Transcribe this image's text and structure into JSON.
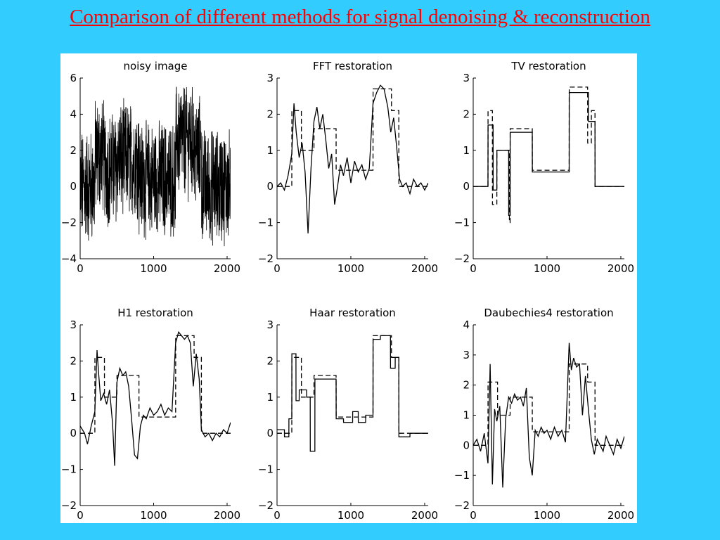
{
  "slide": {
    "title": "Comparison of different methods for signal denoising & reconstruction",
    "colors": {
      "background": "#33ccff",
      "title": "#ff0000",
      "panel": "#ffffff",
      "ink": "#000000"
    }
  },
  "chart_data": [
    {
      "type": "line",
      "title": "noisy image",
      "xlim": [
        0,
        2048
      ],
      "ylim": [
        -4,
        6
      ],
      "xticks": [
        "0",
        "1000",
        "2000"
      ],
      "yticks": [
        "−4",
        "−2",
        "0",
        "2",
        "4",
        "6"
      ],
      "series": [
        {
          "style": "noisy",
          "x": [
            0,
            200,
            201,
            320,
            321,
            500,
            501,
            800,
            801,
            1300,
            1301,
            1550,
            1551,
            1650,
            1651,
            2048
          ],
          "y": [
            0,
            0,
            1.7,
            1.7,
            1.0,
            1.0,
            1.5,
            1.5,
            0.4,
            0.4,
            2.6,
            2.6,
            1.8,
            1.8,
            0,
            0
          ]
        }
      ]
    },
    {
      "type": "line",
      "title": "FFT restoration",
      "xlim": [
        0,
        2048
      ],
      "ylim": [
        -2,
        3
      ],
      "xticks": [
        "0",
        "1000",
        "2000"
      ],
      "yticks": [
        "−2",
        "−1",
        "0",
        "1",
        "2",
        "3"
      ],
      "series": [
        {
          "style": "dashed",
          "x": [
            0,
            200,
            201,
            330,
            331,
            500,
            501,
            800,
            801,
            1300,
            1301,
            1550,
            1551,
            1650,
            1651,
            2048
          ],
          "y": [
            0,
            0,
            2.1,
            2.1,
            1.0,
            1.0,
            1.6,
            1.6,
            0.45,
            0.45,
            2.7,
            2.7,
            2.1,
            2.1,
            0,
            0
          ]
        },
        {
          "style": "solid",
          "x": [
            0,
            50,
            100,
            150,
            200,
            230,
            260,
            300,
            340,
            380,
            420,
            460,
            500,
            540,
            580,
            620,
            660,
            700,
            740,
            780,
            820,
            860,
            900,
            950,
            1000,
            1050,
            1100,
            1150,
            1200,
            1250,
            1300,
            1350,
            1400,
            1450,
            1500,
            1540,
            1580,
            1620,
            1660,
            1700,
            1750,
            1800,
            1850,
            1900,
            1950,
            2000,
            2048
          ],
          "y": [
            0,
            0.1,
            -0.1,
            0.3,
            0.9,
            2.3,
            1.5,
            0.8,
            1.2,
            0.4,
            -1.3,
            0.5,
            1.8,
            2.2,
            1.6,
            2.0,
            1.3,
            0.5,
            0.9,
            -0.5,
            0.0,
            0.6,
            0.3,
            0.8,
            0.1,
            0.7,
            0.4,
            0.6,
            0.2,
            0.5,
            2.3,
            2.6,
            2.8,
            2.7,
            2.2,
            1.5,
            1.9,
            1.1,
            0.2,
            0.0,
            0.1,
            -0.2,
            0.2,
            0.0,
            0.1,
            -0.1,
            0.1
          ]
        }
      ]
    },
    {
      "type": "line",
      "title": "TV restoration",
      "xlim": [
        0,
        2048
      ],
      "ylim": [
        -2,
        3
      ],
      "xticks": [
        "0",
        "1000",
        "2000"
      ],
      "yticks": [
        "−2",
        "−1",
        "0",
        "1",
        "2",
        "3"
      ],
      "series": [
        {
          "style": "dashed",
          "x": [
            0,
            200,
            201,
            260,
            261,
            320,
            321,
            330,
            331,
            490,
            491,
            500,
            501,
            800,
            801,
            1300,
            1301,
            1550,
            1551,
            1600,
            1601,
            1650,
            1651,
            2048
          ],
          "y": [
            0,
            0,
            2.1,
            2.1,
            -0.5,
            -0.5,
            1.0,
            1.0,
            1.0,
            1.0,
            -1.0,
            -1.0,
            1.6,
            1.6,
            0.45,
            0.45,
            2.75,
            2.75,
            1.2,
            1.2,
            2.1,
            2.1,
            0,
            0
          ]
        },
        {
          "style": "solid",
          "x": [
            0,
            200,
            201,
            270,
            271,
            320,
            321,
            480,
            481,
            500,
            501,
            800,
            801,
            1300,
            1301,
            1560,
            1561,
            1650,
            1651,
            2048
          ],
          "y": [
            0,
            0,
            1.7,
            1.7,
            -0.1,
            -0.1,
            1.0,
            1.0,
            -0.8,
            -0.8,
            1.5,
            1.5,
            0.4,
            0.4,
            2.6,
            2.6,
            1.8,
            1.8,
            0,
            0
          ]
        }
      ]
    },
    {
      "type": "line",
      "title": "H1 restoration",
      "xlim": [
        0,
        2048
      ],
      "ylim": [
        -2,
        3
      ],
      "xticks": [
        "0",
        "1000",
        "2000"
      ],
      "yticks": [
        "−2",
        "−1",
        "0",
        "1",
        "2",
        "3"
      ],
      "series": [
        {
          "style": "dashed",
          "x": [
            0,
            200,
            201,
            330,
            331,
            500,
            501,
            800,
            801,
            1300,
            1301,
            1550,
            1551,
            1650,
            1651,
            2048
          ],
          "y": [
            0,
            0,
            2.1,
            2.1,
            1.0,
            1.0,
            1.6,
            1.6,
            0.45,
            0.45,
            2.7,
            2.7,
            2.1,
            2.1,
            0,
            0
          ]
        },
        {
          "style": "solid",
          "x": [
            0,
            60,
            100,
            150,
            200,
            230,
            250,
            280,
            320,
            360,
            400,
            440,
            470,
            500,
            540,
            580,
            620,
            660,
            700,
            740,
            780,
            820,
            860,
            900,
            950,
            1000,
            1050,
            1100,
            1150,
            1200,
            1250,
            1300,
            1340,
            1380,
            1420,
            1460,
            1500,
            1540,
            1580,
            1620,
            1650,
            1700,
            1750,
            1800,
            1850,
            1900,
            1950,
            2000,
            2048
          ],
          "y": [
            0.2,
            0.0,
            -0.3,
            0.2,
            0.6,
            2.3,
            1.7,
            0.9,
            1.1,
            0.8,
            1.2,
            0.3,
            -0.9,
            1.4,
            1.8,
            1.6,
            1.7,
            1.3,
            0.4,
            -0.6,
            -0.7,
            0.2,
            0.5,
            0.4,
            0.7,
            0.5,
            0.6,
            0.8,
            0.5,
            0.7,
            0.6,
            2.5,
            2.8,
            2.7,
            2.6,
            2.7,
            2.5,
            1.3,
            2.2,
            1.5,
            0.1,
            -0.1,
            0.0,
            -0.2,
            0.0,
            -0.1,
            0.1,
            0.0,
            0.3
          ]
        }
      ]
    },
    {
      "type": "line",
      "title": "Haar restoration",
      "xlim": [
        0,
        2048
      ],
      "ylim": [
        -2,
        3
      ],
      "xticks": [
        "0",
        "1000",
        "2000"
      ],
      "yticks": [
        "−2",
        "−1",
        "0",
        "1",
        "2",
        "3"
      ],
      "series": [
        {
          "style": "dashed",
          "x": [
            0,
            200,
            201,
            330,
            331,
            500,
            501,
            800,
            801,
            1300,
            1301,
            1550,
            1551,
            1650,
            1651,
            2048
          ],
          "y": [
            0,
            0,
            2.1,
            2.1,
            1.0,
            1.0,
            1.6,
            1.6,
            0.45,
            0.45,
            2.7,
            2.7,
            2.1,
            2.1,
            0,
            0
          ]
        },
        {
          "style": "solid",
          "x": [
            0,
            100,
            101,
            160,
            161,
            200,
            201,
            256,
            257,
            300,
            301,
            400,
            401,
            450,
            451,
            512,
            513,
            800,
            801,
            900,
            901,
            1024,
            1025,
            1100,
            1101,
            1200,
            1201,
            1300,
            1301,
            1400,
            1401,
            1536,
            1537,
            1600,
            1601,
            1650,
            1651,
            1800,
            1801,
            2048
          ],
          "y": [
            0.1,
            0.1,
            -0.1,
            -0.1,
            0.4,
            0.4,
            2.2,
            2.2,
            0.9,
            0.9,
            1.2,
            1.2,
            1.0,
            1.0,
            -0.5,
            -0.5,
            1.5,
            1.5,
            0.4,
            0.4,
            0.3,
            0.3,
            0.6,
            0.6,
            0.3,
            0.3,
            0.5,
            0.5,
            2.6,
            2.6,
            2.7,
            2.7,
            1.8,
            1.8,
            2.1,
            2.1,
            -0.1,
            -0.1,
            0.0,
            0.0
          ]
        }
      ]
    },
    {
      "type": "line",
      "title": "Daubechies4 restoration",
      "xlim": [
        0,
        2048
      ],
      "ylim": [
        -2,
        4
      ],
      "xticks": [
        "0",
        "1000",
        "2000"
      ],
      "yticks": [
        "−2",
        "−1",
        "0",
        "1",
        "2",
        "3",
        "4"
      ],
      "series": [
        {
          "style": "dashed",
          "x": [
            0,
            200,
            201,
            330,
            331,
            500,
            501,
            800,
            801,
            1300,
            1301,
            1550,
            1551,
            1650,
            1651,
            2048
          ],
          "y": [
            0,
            0,
            2.1,
            2.1,
            1.0,
            1.0,
            1.6,
            1.6,
            0.45,
            0.45,
            2.7,
            2.7,
            2.1,
            2.1,
            0,
            0
          ]
        },
        {
          "style": "solid",
          "x": [
            0,
            50,
            100,
            150,
            200,
            230,
            260,
            290,
            320,
            360,
            400,
            440,
            480,
            520,
            560,
            600,
            640,
            680,
            720,
            760,
            800,
            840,
            880,
            920,
            960,
            1000,
            1050,
            1100,
            1150,
            1200,
            1250,
            1300,
            1330,
            1360,
            1400,
            1440,
            1480,
            1520,
            1560,
            1600,
            1640,
            1680,
            1720,
            1760,
            1800,
            1850,
            1900,
            1950,
            2000,
            2048
          ],
          "y": [
            0.0,
            0.2,
            -0.2,
            0.4,
            -0.6,
            2.7,
            -1.3,
            1.2,
            0.8,
            1.3,
            -1.4,
            0.9,
            1.6,
            1.4,
            1.7,
            1.5,
            1.6,
            1.3,
            1.9,
            -0.4,
            -1.0,
            0.5,
            0.3,
            0.6,
            0.4,
            0.5,
            0.2,
            0.6,
            0.3,
            0.5,
            0.1,
            3.4,
            2.5,
            2.9,
            2.6,
            2.7,
            1.0,
            2.3,
            1.2,
            0.2,
            -0.3,
            0.2,
            0.0,
            -0.2,
            0.3,
            0.0,
            -0.3,
            0.2,
            -0.1,
            0.3
          ]
        }
      ]
    }
  ]
}
